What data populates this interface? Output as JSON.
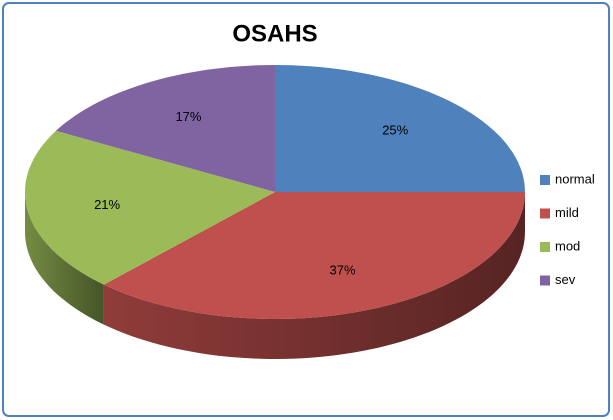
{
  "chart_data": {
    "type": "pie",
    "title": "OSAHS",
    "categories": [
      "normal",
      "mild",
      "mod",
      "sev"
    ],
    "values": [
      25,
      37,
      21,
      17
    ],
    "value_labels": [
      "25%",
      "37%",
      "21%",
      "17%"
    ],
    "colors": [
      "#4f81bd",
      "#c0504d",
      "#9bbb59",
      "#8064a2"
    ],
    "legend": "right"
  }
}
